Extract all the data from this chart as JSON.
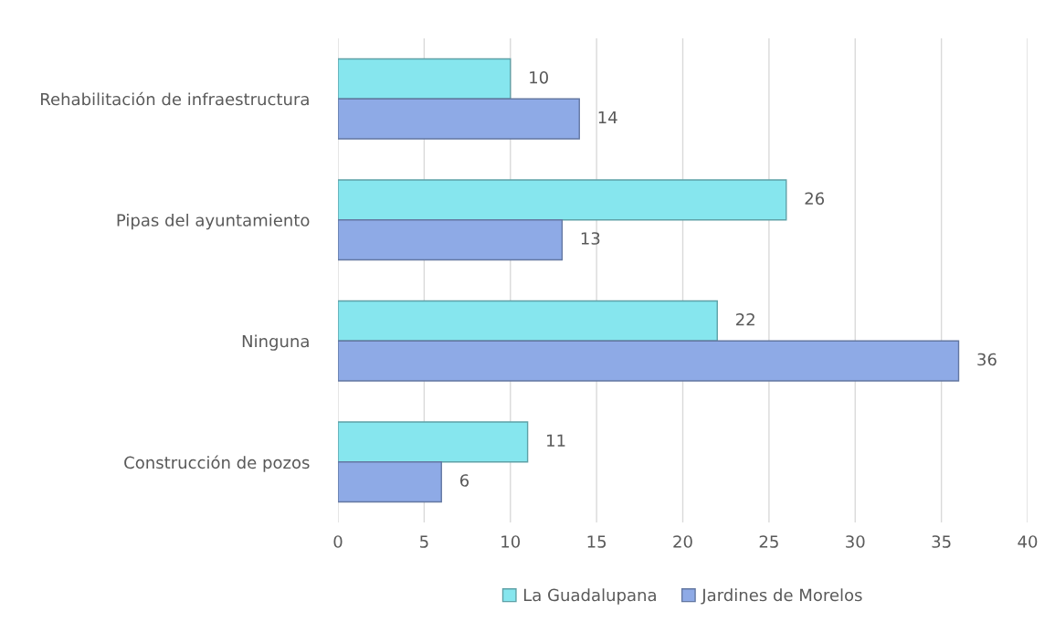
{
  "chart_data": {
    "type": "bar",
    "orientation": "horizontal",
    "categories": [
      "Rehabilitación de infraestructura",
      "Pipas del ayuntamiento",
      "Ninguna",
      "Construcción de pozos"
    ],
    "series": [
      {
        "name": "La Guadalupana",
        "color": "#86e6ee",
        "values": [
          10,
          26,
          22,
          11
        ]
      },
      {
        "name": "Jardines de Morelos",
        "color": "#8eaae6",
        "values": [
          14,
          13,
          36,
          6
        ]
      }
    ],
    "xlim": [
      0,
      40
    ],
    "xticks": [
      0,
      5,
      10,
      15,
      20,
      25,
      30,
      35,
      40
    ],
    "grid": "x",
    "legend": "bottom",
    "data_labels": true
  }
}
